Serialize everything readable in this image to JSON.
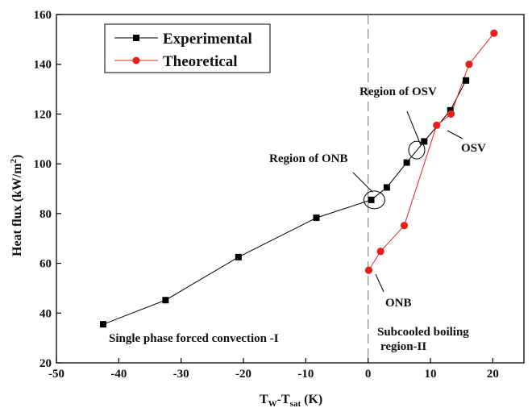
{
  "chart_data": {
    "type": "line",
    "xlabel": {
      "main": "T",
      "sub1": "W",
      "mid": "-T",
      "sub2": "sat",
      "tail": " (K)"
    },
    "ylabel": "Heat flux (kW/m",
    "ylabel_sup": "2",
    "ylabel_tail": ")",
    "xlim": [
      -50,
      25
    ],
    "ylim": [
      20,
      160
    ],
    "x_ticks": [
      -50,
      -40,
      -30,
      -20,
      -10,
      0,
      10,
      20
    ],
    "y_ticks": [
      20,
      40,
      60,
      80,
      100,
      120,
      140,
      160
    ],
    "legend_position": "top-left",
    "series": [
      {
        "name": "Experimental",
        "color": "#000000",
        "marker": "square",
        "x": [
          -42.5,
          -32.5,
          -20.8,
          -8.3,
          0.5,
          3.0,
          6.2,
          9.0,
          13.2,
          15.7
        ],
        "y": [
          35.5,
          45.2,
          62.5,
          78.3,
          85.5,
          90.5,
          100.5,
          109.0,
          121.5,
          133.5
        ]
      },
      {
        "name": "Theoretical",
        "color": "#e8201c",
        "marker": "circle",
        "x": [
          0.1,
          2.0,
          5.8,
          11.0,
          13.3,
          16.2,
          20.2
        ],
        "y": [
          57.2,
          64.8,
          75.2,
          115.5,
          120.0,
          140.0,
          152.5
        ]
      }
    ],
    "annotations": {
      "region_onb": "Region of ONB",
      "region_osv": "Region of OSV",
      "osv": "OSV",
      "onb": "ONB",
      "region_1": "Single phase forced convection -I",
      "region_2_line1": "Subcooled boiling",
      "region_2_line2": "region-II"
    },
    "onb_ellipse_center": [
      1.0,
      85.5
    ],
    "osv_ellipse_center": [
      7.8,
      105.5
    ],
    "divider_x": 0
  }
}
